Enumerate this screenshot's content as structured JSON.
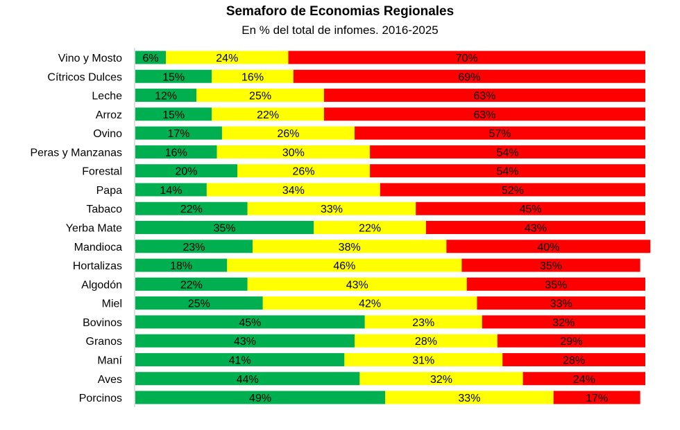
{
  "chart_data": {
    "type": "bar",
    "orientation": "horizontal",
    "stacked": true,
    "percent_stacked": true,
    "title": "Semaforo de Economias Regionales",
    "subtitle": "En % del total de infomes. 2016-2025",
    "xlabel": "",
    "ylabel": "",
    "xlim": [
      0,
      100
    ],
    "grid": false,
    "legend": "none",
    "categories": [
      "Vino y Mosto",
      "Cítricos Dulces",
      "Leche",
      "Arroz",
      "Ovino",
      "Peras y Manzanas",
      "Forestal",
      "Papa",
      "Tabaco",
      "Yerba Mate",
      "Mandioca",
      "Hortalizas",
      "Algodón",
      "Miel",
      "Bovinos",
      "Granos",
      "Maní",
      "Aves",
      "Porcinos"
    ],
    "series": [
      {
        "color": "#00B050",
        "values": [
          6,
          15,
          12,
          15,
          17,
          16,
          20,
          14,
          22,
          35,
          23,
          18,
          22,
          25,
          45,
          43,
          41,
          44,
          49
        ]
      },
      {
        "color": "#FFFF00",
        "values": [
          24,
          16,
          25,
          22,
          26,
          30,
          26,
          34,
          33,
          22,
          38,
          46,
          43,
          42,
          23,
          28,
          31,
          32,
          33
        ]
      },
      {
        "color": "#FF0000",
        "values": [
          70,
          69,
          63,
          63,
          57,
          54,
          54,
          52,
          45,
          43,
          40,
          35,
          35,
          33,
          32,
          29,
          28,
          24,
          17
        ]
      }
    ],
    "data_label_suffix": "%"
  }
}
